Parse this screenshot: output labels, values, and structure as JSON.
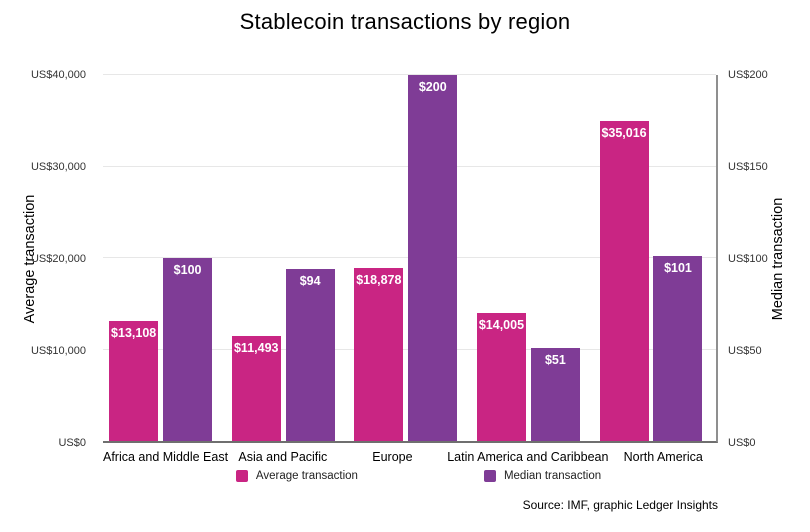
{
  "title": "Stablecoin transactions by region",
  "source": "Source: IMF, graphic Ledger Insights",
  "colors": {
    "average_bar": "#c92583",
    "median_bar": "#7f3c96",
    "gridline": "#e7e7e7",
    "axis_line": "#6f6f6f"
  },
  "legend": [
    {
      "label": "Average transaction",
      "color": "#c92583"
    },
    {
      "label": "Median transaction",
      "color": "#7f3c96"
    }
  ],
  "chart_data": {
    "type": "bar",
    "title": "Stablecoin transactions by region",
    "categories": [
      "Africa and Middle East",
      "Asia and Pacific",
      "Europe",
      "Latin America and Caribbean",
      "North America"
    ],
    "series": [
      {
        "name": "Average transaction",
        "axis": "left",
        "color": "#c92583",
        "values": [
          13108,
          11493,
          18878,
          14005,
          35016
        ],
        "labels": [
          "$13,108",
          "$11,493",
          "$18,878",
          "$14,005",
          "$35,016"
        ]
      },
      {
        "name": "Median transaction",
        "axis": "right",
        "color": "#7f3c96",
        "values": [
          100,
          94,
          200,
          51,
          101
        ],
        "labels": [
          "$100",
          "$94",
          "$200",
          "$51",
          "$101"
        ]
      }
    ],
    "left_axis": {
      "title": "Average transaction",
      "min": 0,
      "max": 40000,
      "ticks": [
        {
          "value": 0,
          "label": "US$0"
        },
        {
          "value": 10000,
          "label": "US$10,000"
        },
        {
          "value": 20000,
          "label": "US$20,000"
        },
        {
          "value": 30000,
          "label": "US$30,000"
        },
        {
          "value": 40000,
          "label": "US$40,000"
        }
      ]
    },
    "right_axis": {
      "title": "Median transaction",
      "min": 0,
      "max": 200,
      "ticks": [
        {
          "value": 0,
          "label": "US$0"
        },
        {
          "value": 50,
          "label": "US$50"
        },
        {
          "value": 100,
          "label": "US$100"
        },
        {
          "value": 150,
          "label": "US$150"
        },
        {
          "value": 200,
          "label": "US$200"
        }
      ]
    },
    "grid": true,
    "legend_position": "bottom",
    "value_labels": "inside-top"
  }
}
